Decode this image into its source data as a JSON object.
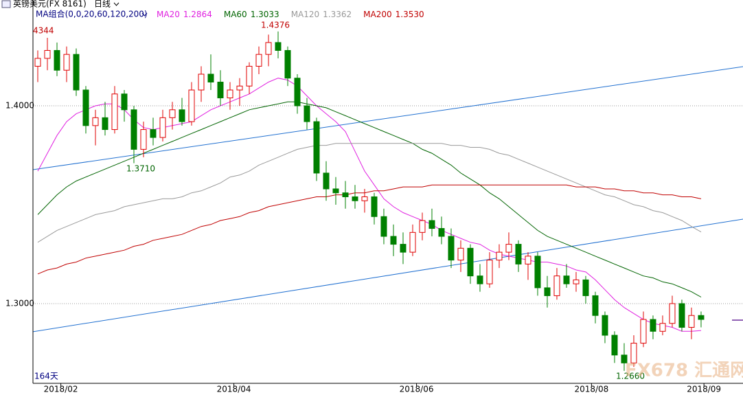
{
  "chart_data": {
    "type": "candlestick",
    "header": {
      "symbol": "英镑美元(FX 8161)",
      "period": "日线",
      "ma_group": "MA组合(0,0,20,60,120,200)"
    },
    "ylim": [
      1.2597,
      1.4535
    ],
    "yticks": [
      {
        "value": 1.4,
        "label": "1.4000"
      },
      {
        "value": 1.3,
        "label": "1.3000"
      }
    ],
    "xlim": [
      -0.5,
      73.36
    ],
    "xticks": [
      {
        "value": 2.4,
        "label": "2018/02"
      },
      {
        "value": 20.4,
        "label": "2018/04"
      },
      {
        "value": 39.4,
        "label": "2018/06"
      },
      {
        "value": 57.6,
        "label": "2018/08"
      },
      {
        "value": 69.3,
        "label": "2018/09"
      }
    ],
    "grid": true,
    "up_color": "#e00000",
    "down_color": "#008000",
    "ohlc": [
      [
        1.42,
        1.428,
        1.412,
        1.424
      ],
      [
        1.424,
        1.4344,
        1.418,
        1.428
      ],
      [
        1.428,
        1.432,
        1.415,
        1.418
      ],
      [
        1.418,
        1.43,
        1.412,
        1.426
      ],
      [
        1.426,
        1.429,
        1.405,
        1.408
      ],
      [
        1.408,
        1.41,
        1.386,
        1.39
      ],
      [
        1.39,
        1.398,
        1.38,
        1.394
      ],
      [
        1.394,
        1.402,
        1.385,
        1.388
      ],
      [
        1.388,
        1.41,
        1.386,
        1.406
      ],
      [
        1.406,
        1.408,
        1.392,
        1.398
      ],
      [
        1.398,
        1.4,
        1.371,
        1.378
      ],
      [
        1.378,
        1.392,
        1.374,
        1.388
      ],
      [
        1.388,
        1.394,
        1.38,
        1.384
      ],
      [
        1.384,
        1.398,
        1.382,
        1.394
      ],
      [
        1.394,
        1.402,
        1.388,
        1.398
      ],
      [
        1.398,
        1.404,
        1.39,
        1.392
      ],
      [
        1.392,
        1.412,
        1.39,
        1.408
      ],
      [
        1.408,
        1.42,
        1.402,
        1.416
      ],
      [
        1.416,
        1.426,
        1.408,
        1.412
      ],
      [
        1.412,
        1.418,
        1.4,
        1.404
      ],
      [
        1.404,
        1.412,
        1.398,
        1.408
      ],
      [
        1.408,
        1.414,
        1.4,
        1.41
      ],
      [
        1.41,
        1.422,
        1.406,
        1.42
      ],
      [
        1.42,
        1.43,
        1.416,
        1.426
      ],
      [
        1.426,
        1.436,
        1.42,
        1.432
      ],
      [
        1.432,
        1.4376,
        1.424,
        1.428
      ],
      [
        1.428,
        1.43,
        1.41,
        1.414
      ],
      [
        1.414,
        1.416,
        1.396,
        1.4
      ],
      [
        1.4,
        1.404,
        1.388,
        1.392
      ],
      [
        1.392,
        1.394,
        1.362,
        1.366
      ],
      [
        1.366,
        1.372,
        1.352,
        1.358
      ],
      [
        1.358,
        1.364,
        1.35,
        1.356
      ],
      [
        1.356,
        1.362,
        1.348,
        1.354
      ],
      [
        1.354,
        1.36,
        1.348,
        1.352
      ],
      [
        1.352,
        1.358,
        1.346,
        1.354
      ],
      [
        1.354,
        1.356,
        1.34,
        1.344
      ],
      [
        1.344,
        1.348,
        1.33,
        1.334
      ],
      [
        1.334,
        1.34,
        1.324,
        1.33
      ],
      [
        1.33,
        1.336,
        1.32,
        1.326
      ],
      [
        1.326,
        1.34,
        1.324,
        1.336
      ],
      [
        1.336,
        1.346,
        1.332,
        1.342
      ],
      [
        1.342,
        1.348,
        1.334,
        1.338
      ],
      [
        1.338,
        1.344,
        1.33,
        1.334
      ],
      [
        1.334,
        1.338,
        1.318,
        1.322
      ],
      [
        1.322,
        1.332,
        1.316,
        1.328
      ],
      [
        1.328,
        1.33,
        1.31,
        1.314
      ],
      [
        1.314,
        1.32,
        1.306,
        1.31
      ],
      [
        1.31,
        1.326,
        1.308,
        1.322
      ],
      [
        1.322,
        1.33,
        1.318,
        1.326
      ],
      [
        1.326,
        1.336,
        1.322,
        1.33
      ],
      [
        1.33,
        1.332,
        1.316,
        1.32
      ],
      [
        1.32,
        1.326,
        1.312,
        1.324
      ],
      [
        1.324,
        1.326,
        1.304,
        1.308
      ],
      [
        1.308,
        1.314,
        1.298,
        1.304
      ],
      [
        1.304,
        1.318,
        1.302,
        1.314
      ],
      [
        1.314,
        1.32,
        1.308,
        1.31
      ],
      [
        1.31,
        1.316,
        1.306,
        1.312
      ],
      [
        1.312,
        1.314,
        1.3,
        1.304
      ],
      [
        1.304,
        1.306,
        1.29,
        1.294
      ],
      [
        1.294,
        1.296,
        1.28,
        1.284
      ],
      [
        1.284,
        1.286,
        1.27,
        1.274
      ],
      [
        1.274,
        1.28,
        1.266,
        1.27
      ],
      [
        1.27,
        1.284,
        1.268,
        1.28
      ],
      [
        1.28,
        1.296,
        1.278,
        1.292
      ],
      [
        1.292,
        1.294,
        1.282,
        1.286
      ],
      [
        1.286,
        1.294,
        1.284,
        1.29
      ],
      [
        1.29,
        1.304,
        1.288,
        1.3
      ],
      [
        1.3,
        1.302,
        1.286,
        1.288
      ],
      [
        1.288,
        1.298,
        1.282,
        1.294
      ],
      [
        1.294,
        1.296,
        1.288,
        1.292
      ]
    ],
    "series": [
      {
        "name": "MA20",
        "value_label": "1.2864",
        "color": "#e020e0",
        "values": [
          1.367,
          1.376,
          1.385,
          1.392,
          1.396,
          1.398,
          1.4,
          1.401,
          1.401,
          1.398,
          1.393,
          1.389,
          1.388,
          1.389,
          1.39,
          1.391,
          1.392,
          1.395,
          1.398,
          1.4,
          1.402,
          1.404,
          1.406,
          1.409,
          1.412,
          1.414,
          1.413,
          1.41,
          1.405,
          1.4,
          1.396,
          1.392,
          1.387,
          1.377,
          1.367,
          1.36,
          1.353,
          1.349,
          1.346,
          1.344,
          1.342,
          1.34,
          1.337,
          1.335,
          1.333,
          1.331,
          1.33,
          1.327,
          1.325,
          1.324,
          1.323,
          1.322,
          1.321,
          1.321,
          1.32,
          1.319,
          1.317,
          1.316,
          1.312,
          1.307,
          1.302,
          1.298,
          1.295,
          1.292,
          1.29,
          1.289,
          1.288,
          1.286,
          1.286,
          1.2864
        ]
      },
      {
        "name": "MA60",
        "value_label": "1.3033",
        "color": "#006400",
        "values": [
          1.345,
          1.35,
          1.355,
          1.359,
          1.362,
          1.364,
          1.366,
          1.368,
          1.37,
          1.372,
          1.374,
          1.376,
          1.378,
          1.38,
          1.382,
          1.384,
          1.386,
          1.388,
          1.39,
          1.392,
          1.394,
          1.396,
          1.398,
          1.399,
          1.4,
          1.401,
          1.402,
          1.402,
          1.401,
          1.4,
          1.399,
          1.397,
          1.395,
          1.393,
          1.391,
          1.389,
          1.387,
          1.385,
          1.383,
          1.381,
          1.378,
          1.376,
          1.373,
          1.37,
          1.366,
          1.363,
          1.36,
          1.356,
          1.353,
          1.349,
          1.345,
          1.341,
          1.337,
          1.334,
          1.332,
          1.33,
          1.328,
          1.326,
          1.324,
          1.322,
          1.32,
          1.318,
          1.316,
          1.314,
          1.313,
          1.311,
          1.31,
          1.308,
          1.306,
          1.3033
        ]
      },
      {
        "name": "MA120",
        "value_label": "1.3362",
        "color": "#999999",
        "values": [
          1.331,
          1.334,
          1.337,
          1.339,
          1.341,
          1.343,
          1.345,
          1.346,
          1.347,
          1.349,
          1.35,
          1.351,
          1.352,
          1.353,
          1.353,
          1.354,
          1.356,
          1.357,
          1.359,
          1.361,
          1.364,
          1.365,
          1.367,
          1.37,
          1.372,
          1.374,
          1.376,
          1.378,
          1.379,
          1.38,
          1.38,
          1.381,
          1.381,
          1.381,
          1.381,
          1.381,
          1.381,
          1.381,
          1.381,
          1.381,
          1.381,
          1.381,
          1.381,
          1.38,
          1.38,
          1.379,
          1.379,
          1.378,
          1.376,
          1.375,
          1.373,
          1.371,
          1.369,
          1.367,
          1.365,
          1.363,
          1.361,
          1.359,
          1.357,
          1.355,
          1.354,
          1.352,
          1.35,
          1.349,
          1.347,
          1.346,
          1.344,
          1.342,
          1.339,
          1.3362
        ]
      },
      {
        "name": "MA200",
        "value_label": "1.3530",
        "color": "#c00000",
        "values": [
          1.315,
          1.317,
          1.318,
          1.32,
          1.321,
          1.323,
          1.324,
          1.325,
          1.326,
          1.327,
          1.329,
          1.33,
          1.332,
          1.333,
          1.334,
          1.335,
          1.337,
          1.339,
          1.34,
          1.342,
          1.343,
          1.344,
          1.346,
          1.347,
          1.349,
          1.35,
          1.351,
          1.352,
          1.353,
          1.354,
          1.354,
          1.355,
          1.355,
          1.356,
          1.356,
          1.357,
          1.357,
          1.358,
          1.359,
          1.359,
          1.359,
          1.36,
          1.36,
          1.36,
          1.36,
          1.36,
          1.36,
          1.36,
          1.36,
          1.36,
          1.36,
          1.36,
          1.36,
          1.36,
          1.36,
          1.36,
          1.359,
          1.359,
          1.359,
          1.358,
          1.358,
          1.357,
          1.357,
          1.356,
          1.356,
          1.355,
          1.355,
          1.354,
          1.354,
          1.353
        ]
      }
    ],
    "trendlines": [
      {
        "color": "#1f6fd0",
        "x": [
          -0.5,
          73.36
        ],
        "values": [
          1.3677,
          1.4198
        ]
      },
      {
        "color": "#1f6fd0",
        "x": [
          -0.5,
          73.36
        ],
        "values": [
          1.2858,
          1.3427
        ]
      }
    ],
    "annotations": [
      "4344",
      "1.4376",
      "1.3710",
      "1.2660",
      "164天"
    ],
    "watermark": "FX678 汇通网"
  }
}
